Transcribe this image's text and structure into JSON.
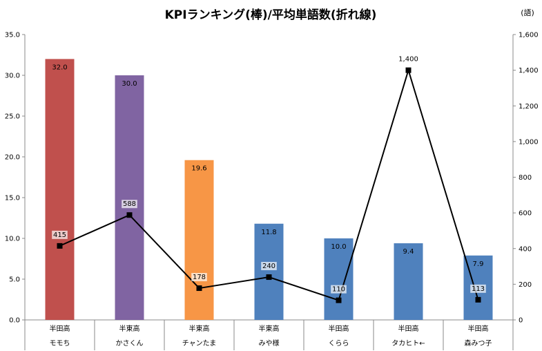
{
  "chart_data": {
    "type": "bar",
    "title": "KPIランキング(棒)/平均単語数(折れ線)",
    "y2_unit": "(語)",
    "categories": [
      {
        "school": "半田高",
        "name": "モモち"
      },
      {
        "school": "半東高",
        "name": "かさくん"
      },
      {
        "school": "半東高",
        "name": "チャンたま"
      },
      {
        "school": "半東高",
        "name": "みや様"
      },
      {
        "school": "半田高",
        "name": "くらら"
      },
      {
        "school": "半田高",
        "name": "タカヒト←"
      },
      {
        "school": "半田高",
        "name": "森みつ子"
      }
    ],
    "series": [
      {
        "type": "bar",
        "axis": "left",
        "values": [
          32.0,
          30.0,
          19.6,
          11.8,
          10.0,
          9.4,
          7.9
        ],
        "labels": [
          "32.0",
          "30.0",
          "19.6",
          "11.8",
          "10.0",
          "9.4",
          "7.9"
        ],
        "colors": [
          "#c0504d",
          "#8064a2",
          "#f79646",
          "#4f81bd",
          "#4f81bd",
          "#4f81bd",
          "#4f81bd"
        ]
      },
      {
        "type": "line",
        "axis": "right",
        "values": [
          415,
          588,
          178,
          240,
          110,
          1400,
          113
        ],
        "labels": [
          "415",
          "588",
          "178",
          "240",
          "110",
          "1,400",
          "113"
        ],
        "color": "#000000"
      }
    ],
    "y_left": {
      "range": [
        0,
        35
      ],
      "ticks": [
        "0.0",
        "5.0",
        "10.0",
        "15.0",
        "20.0",
        "25.0",
        "30.0",
        "35.0"
      ],
      "tick_values": [
        0,
        5,
        10,
        15,
        20,
        25,
        30,
        35
      ]
    },
    "y_right": {
      "range": [
        0,
        1600
      ],
      "ticks": [
        "0",
        "200",
        "400",
        "600",
        "800",
        "1,000",
        "1,200",
        "1,400",
        "1,600"
      ],
      "tick_values": [
        0,
        200,
        400,
        600,
        800,
        1000,
        1200,
        1400,
        1600
      ]
    },
    "grid": false,
    "legend": "none"
  }
}
